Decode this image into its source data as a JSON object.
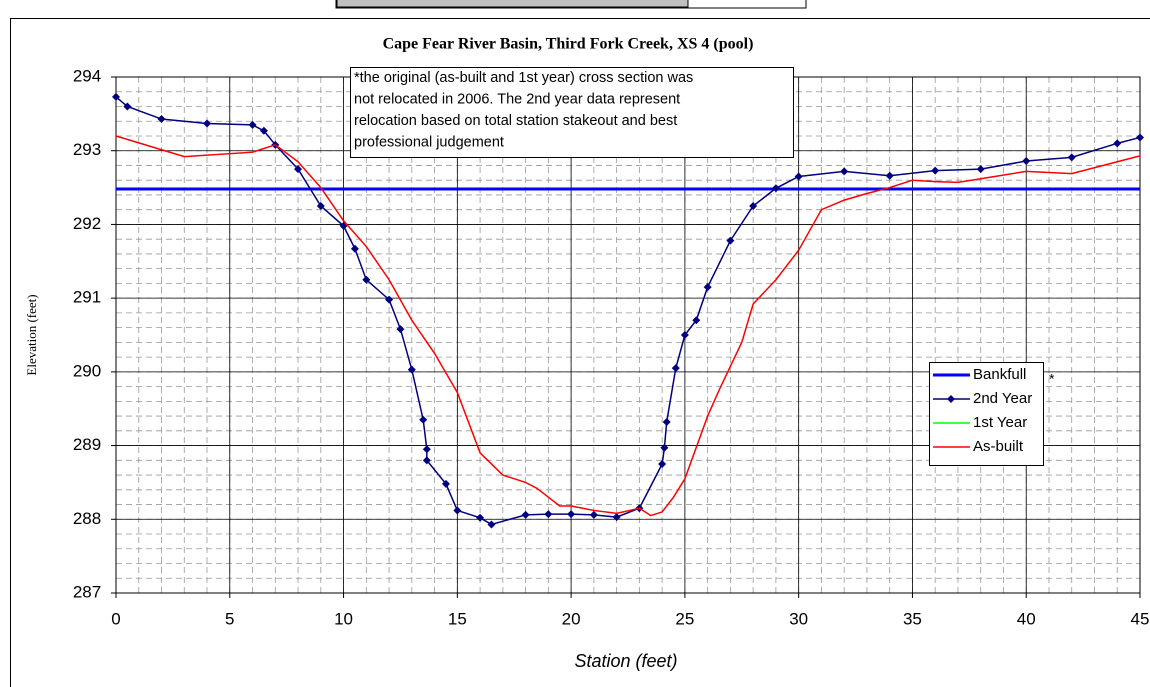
{
  "chart_data": {
    "type": "line",
    "title": "Cape Fear River Basin, Third Fork Creek, XS 4 (pool)",
    "xlabel": "Station (feet)",
    "ylabel": "Elevation (feet)",
    "annotation": [
      "*the original (as-built and 1st year) cross section was",
      "not relocated in 2006.  The 2nd year data represent",
      "relocation  based on total station stakeout and best",
      "professional judgement"
    ],
    "legend_note": "*",
    "xlim": [
      0,
      45
    ],
    "xticks": [
      0,
      5,
      10,
      15,
      20,
      25,
      30,
      35,
      40,
      45
    ],
    "ylim": [
      287,
      294
    ],
    "yticks": [
      287,
      288,
      289,
      290,
      291,
      292,
      293,
      294
    ],
    "grid": true,
    "minor_grid": {
      "x": 1,
      "y": 0.2
    },
    "legend": "right",
    "series": [
      {
        "name": "Bankfull",
        "color": "#0000ff",
        "width": 3,
        "x": [
          0,
          45
        ],
        "values": [
          292.48,
          292.48
        ]
      },
      {
        "name": "2nd Year",
        "color": "#000080",
        "width": 1.5,
        "marker": "diamond",
        "x": [
          0,
          0.5,
          2,
          4,
          6,
          6.5,
          7,
          8,
          9,
          10,
          10.5,
          11,
          12,
          12.5,
          13,
          13.5,
          13.66,
          13.66,
          14.5,
          15,
          16,
          16.5,
          18,
          19,
          20,
          21,
          22,
          23,
          24,
          24.1,
          24.2,
          24.6,
          25,
          25.5,
          26,
          27,
          28,
          29,
          30,
          32,
          34,
          36,
          38,
          40,
          42,
          44,
          45
        ],
        "values": [
          293.73,
          293.6,
          293.43,
          293.37,
          293.35,
          293.27,
          293.08,
          292.75,
          292.25,
          291.98,
          291.67,
          291.25,
          290.98,
          290.58,
          290.03,
          289.35,
          288.95,
          288.8,
          288.48,
          288.12,
          288.02,
          287.93,
          288.06,
          288.07,
          288.07,
          288.06,
          288.03,
          288.15,
          288.75,
          288.97,
          289.32,
          290.05,
          290.5,
          290.7,
          291.15,
          291.78,
          292.25,
          292.49,
          292.65,
          292.72,
          292.66,
          292.73,
          292.75,
          292.86,
          292.91,
          293.1,
          293.18
        ]
      },
      {
        "name": "1st Year",
        "color": "#00ff00",
        "width": 1.5,
        "x": [],
        "values": []
      },
      {
        "name": "As-built",
        "color": "#ff0000",
        "width": 1.5,
        "x": [
          0,
          3,
          6,
          7,
          8,
          9,
          10,
          11,
          12,
          13,
          14,
          15,
          16,
          17,
          18,
          18.5,
          19.5,
          20,
          21,
          22,
          23,
          23.5,
          24,
          24.5,
          25,
          26,
          26.5,
          27.5,
          28,
          29,
          30,
          31,
          32,
          33,
          34,
          35,
          36,
          37,
          38,
          40,
          42,
          44,
          45
        ],
        "values": [
          293.2,
          292.92,
          292.98,
          293.08,
          292.85,
          292.5,
          292.05,
          291.7,
          291.25,
          290.7,
          290.25,
          289.72,
          288.9,
          288.6,
          288.5,
          288.42,
          288.18,
          288.18,
          288.12,
          288.08,
          288.15,
          288.05,
          288.1,
          288.3,
          288.55,
          289.4,
          289.75,
          290.4,
          290.92,
          291.25,
          291.65,
          292.2,
          292.33,
          292.42,
          292.5,
          292.6,
          292.58,
          292.57,
          292.62,
          292.72,
          292.69,
          292.85,
          292.93
        ]
      }
    ]
  }
}
